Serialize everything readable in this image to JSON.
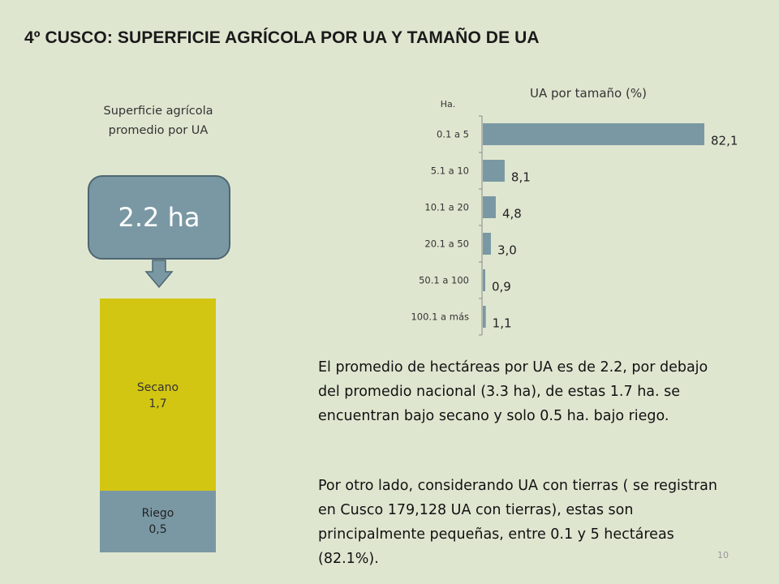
{
  "title": "4º CUSCO:  SUPERFICIE AGRÍCOLA POR UA Y TAMAÑO DE UA",
  "left": {
    "subtitle_line1": "Superficie agrícola",
    "subtitle_line2": "promedio por UA",
    "average_label": "2.2 ha",
    "secano_label": "Secano",
    "secano_value": "1,7",
    "riego_label": "Riego",
    "riego_value": "0,5"
  },
  "paragraph1": "El promedio de hectáreas por UA es de 2.2, por debajo del promedio nacional (3.3 ha), de estas 1.7 ha. se encuentran bajo secano y solo 0.5 ha. bajo riego.",
  "paragraph2": "Por otro lado, considerando UA con tierras ( se registran en Cusco 179,128 UA con tierras), estas son principalmente pequeñas, entre 0.1  y 5 hectáreas (82.1%).",
  "page_number": "10",
  "colors": {
    "bar": "#7a98a4",
    "secano": "#d3c612",
    "riego": "#7a98a4",
    "background": "#dfe6d0"
  },
  "chart_data": [
    {
      "type": "bar",
      "orientation": "horizontal",
      "title": "UA por tamaño (%)",
      "ylabel": "Ha.",
      "categories": [
        "0.1 a 5",
        "5.1 a 10",
        "10.1 a 20",
        "20.1 a 50",
        "50.1 a 100",
        "100.1 a más"
      ],
      "values": [
        82.1,
        8.1,
        4.8,
        3.0,
        0.9,
        1.1
      ],
      "value_labels": [
        "82,1",
        "8,1",
        "4,8",
        "3,0",
        "0,9",
        "1,1"
      ],
      "xlim": [
        0,
        82.1
      ]
    },
    {
      "type": "bar",
      "stacked": true,
      "categories": [
        "Riego",
        "Secano"
      ],
      "values": [
        0.5,
        1.7
      ]
    }
  ]
}
